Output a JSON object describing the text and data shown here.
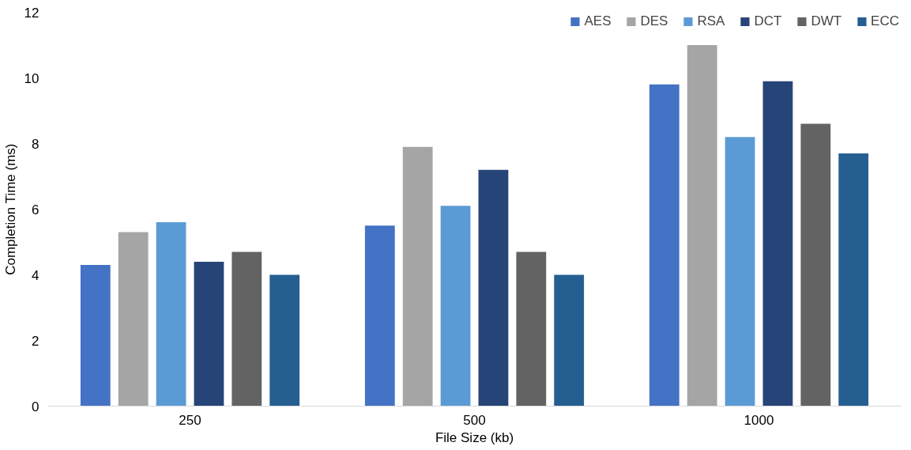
{
  "chart_data": {
    "type": "bar",
    "xlabel": "File Size (kb)",
    "ylabel": "Completion Time (ms)",
    "categories": [
      "250",
      "500",
      "1000"
    ],
    "series": [
      {
        "name": "AES",
        "color": "#4472c4",
        "values": [
          4.3,
          5.5,
          9.8
        ]
      },
      {
        "name": "DES",
        "color": "#a5a5a5",
        "values": [
          5.3,
          7.9,
          11.0
        ]
      },
      {
        "name": "RSA",
        "color": "#5b9bd5",
        "values": [
          5.6,
          6.1,
          8.2
        ]
      },
      {
        "name": "DCT",
        "color": "#264478",
        "values": [
          4.4,
          7.2,
          9.9
        ]
      },
      {
        "name": "DWT",
        "color": "#636363",
        "values": [
          4.7,
          4.7,
          8.6
        ]
      },
      {
        "name": "ECC",
        "color": "#255e91",
        "values": [
          4.0,
          4.0,
          7.7
        ]
      }
    ],
    "ylim": [
      0,
      12
    ],
    "yticks": [
      0,
      2,
      4,
      6,
      8,
      10,
      12
    ],
    "grid": false,
    "legend": "top right"
  }
}
